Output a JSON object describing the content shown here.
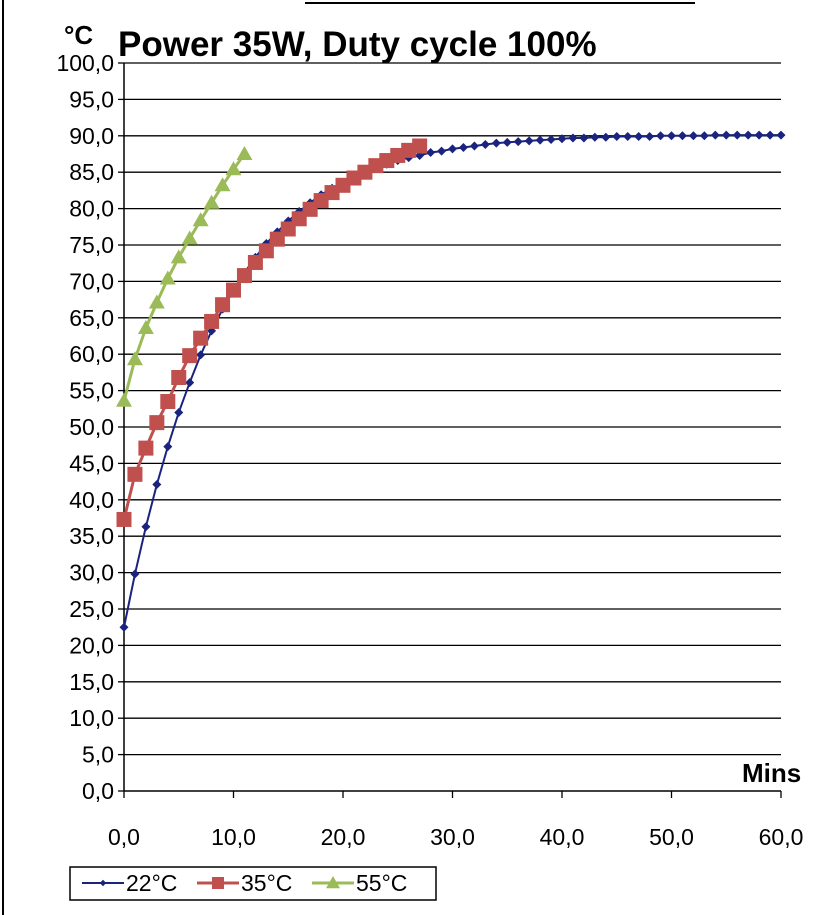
{
  "chart_data": {
    "type": "line",
    "title": "Power 35W, Duty cycle 100%",
    "xlabel": "Mins",
    "ylabel": "°C",
    "xlim": [
      0,
      60
    ],
    "ylim": [
      0,
      100
    ],
    "x_ticks": [
      "0,0",
      "10,0",
      "20,0",
      "30,0",
      "40,0",
      "50,0",
      "60,0"
    ],
    "y_ticks": [
      "0,0",
      "5,0",
      "10,0",
      "15,0",
      "20,0",
      "25,0",
      "30,0",
      "35,0",
      "40,0",
      "45,0",
      "50,0",
      "55,0",
      "60,0",
      "65,0",
      "70,0",
      "75,0",
      "80,0",
      "85,0",
      "90,0",
      "95,0",
      "100,0"
    ],
    "grid": true,
    "legend_position": "bottom-left",
    "series": [
      {
        "name": "22°C",
        "color": "#1a237e",
        "marker": "diamond",
        "x": [
          0,
          1,
          2,
          3,
          4,
          5,
          6,
          7,
          8,
          9,
          10,
          11,
          12,
          13,
          14,
          15,
          16,
          17,
          18,
          19,
          20,
          21,
          22,
          23,
          24,
          25,
          26,
          27,
          28,
          29,
          30,
          31,
          32,
          33,
          34,
          35,
          36,
          37,
          38,
          39,
          40,
          41,
          42,
          43,
          44,
          45,
          46,
          47,
          48,
          49,
          50,
          51,
          52,
          53,
          54,
          55,
          56,
          57,
          58,
          59,
          60
        ],
        "y": [
          22.5,
          29.8,
          36.3,
          42.1,
          47.3,
          52.0,
          56.1,
          59.9,
          63.2,
          66.2,
          68.8,
          71.2,
          73.3,
          75.2,
          76.8,
          78.3,
          79.6,
          80.8,
          81.9,
          82.8,
          83.6,
          84.4,
          85.0,
          85.6,
          86.1,
          86.6,
          87.0,
          87.3,
          87.7,
          87.9,
          88.2,
          88.4,
          88.6,
          88.8,
          89.0,
          89.1,
          89.2,
          89.3,
          89.4,
          89.5,
          89.6,
          89.7,
          89.7,
          89.8,
          89.8,
          89.9,
          89.9,
          89.9,
          89.9,
          90.0,
          90.0,
          90.0,
          90.0,
          90.0,
          90.1,
          90.1,
          90.1,
          90.1,
          90.1,
          90.1,
          90.1
        ]
      },
      {
        "name": "35°C",
        "color": "#c0504d",
        "marker": "square",
        "x": [
          0,
          1,
          2,
          3,
          4,
          5,
          6,
          7,
          8,
          9,
          10,
          11,
          12,
          13,
          14,
          15,
          16,
          17,
          18,
          19,
          20,
          21,
          22,
          23,
          24,
          25,
          26,
          27
        ],
        "y": [
          37.3,
          43.5,
          47.1,
          50.6,
          53.5,
          56.8,
          59.8,
          62.2,
          64.5,
          66.8,
          68.8,
          70.8,
          72.6,
          74.2,
          75.8,
          77.2,
          78.6,
          79.9,
          81.1,
          82.2,
          83.2,
          84.2,
          85.0,
          85.9,
          86.6,
          87.3,
          88.0,
          88.6
        ]
      },
      {
        "name": "55°C",
        "color": "#9bbb59",
        "marker": "triangle",
        "x": [
          0,
          1,
          2,
          3,
          4,
          5,
          6,
          7,
          8,
          9,
          10,
          11
        ],
        "y": [
          53.6,
          59.3,
          63.6,
          67.1,
          70.4,
          73.3,
          75.9,
          78.4,
          80.8,
          83.2,
          85.4,
          87.5
        ]
      }
    ]
  }
}
